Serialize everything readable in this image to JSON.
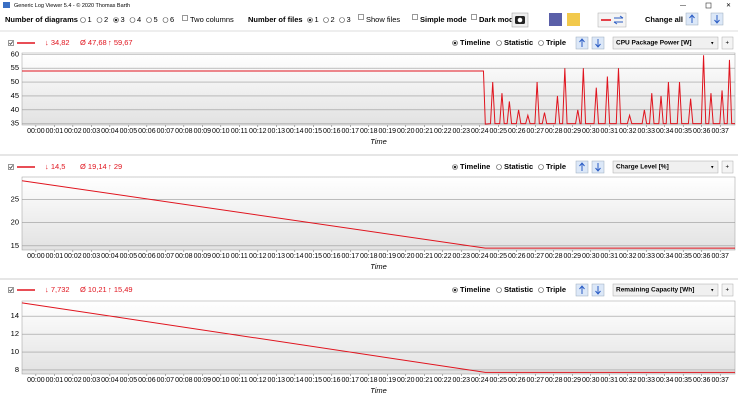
{
  "window": {
    "title": "Generic Log Viewer 5.4 - © 2020 Thomas Barth"
  },
  "toolbar": {
    "diagrams_label": "Number of diagrams",
    "diagram_options": [
      "1",
      "2",
      "3",
      "4",
      "5",
      "6"
    ],
    "diagram_selected": "3",
    "two_columns": "Two columns",
    "files_label": "Number of files",
    "file_options": [
      "1",
      "2",
      "3"
    ],
    "file_selected": "1",
    "show_files": "Show files",
    "simple_mode": "Simple mode",
    "dark_mode": "Dark mod",
    "change_all": "Change all"
  },
  "chart_data": [
    {
      "type": "line",
      "stats": [
        "↓ 34,82",
        "Ø 47,68",
        "↑ 59,67"
      ],
      "view_options": [
        "Timeline",
        "Statistic",
        "Triple"
      ],
      "view_selected": "Timeline",
      "channel": "CPU Package Power [W]",
      "x_label": "Time",
      "color": "#e0141e",
      "grid": true,
      "x": [
        -0.75,
        24.2,
        24.3,
        24.58,
        24.7,
        24.82,
        25.08,
        25.2,
        25.32,
        25.48,
        25.6,
        25.72,
        25.98,
        26.1,
        26.22,
        26.48,
        26.6,
        26.72,
        26.98,
        27.1,
        27.22,
        27.38,
        27.5,
        27.62,
        28.08,
        28.2,
        28.32,
        28.48,
        28.6,
        28.72,
        29.18,
        29.3,
        29.42,
        29.48,
        29.6,
        29.72,
        30.18,
        30.3,
        30.42,
        30.78,
        30.9,
        31.02,
        31.38,
        31.5,
        31.62,
        31.98,
        32.1,
        32.22,
        32.78,
        32.9,
        33.02,
        33.18,
        33.3,
        33.42,
        33.68,
        33.8,
        33.92,
        34.08,
        34.2,
        34.32,
        34.68,
        34.8,
        34.92,
        35.28,
        35.4,
        35.52,
        35.98,
        36.1,
        36.22,
        36.38,
        36.5,
        36.62,
        36.98,
        37.1,
        37.22,
        37.38,
        37.5,
        37.62,
        37.8
      ],
      "values": [
        54,
        54,
        34.82,
        35,
        50,
        35,
        35,
        46,
        35,
        35,
        43,
        35,
        35,
        40,
        35,
        35,
        38,
        35,
        35,
        50,
        35,
        35,
        39,
        35,
        35,
        45,
        35,
        35,
        55,
        35,
        35,
        40,
        35,
        35,
        55,
        35,
        35,
        48,
        35,
        35,
        52,
        35,
        35,
        55,
        35,
        35,
        38,
        35,
        35,
        40,
        35,
        35,
        46,
        35,
        35,
        45,
        35,
        35,
        50,
        35,
        35,
        50,
        35,
        35,
        44,
        35,
        35,
        59.67,
        35,
        35,
        46,
        35,
        35,
        47,
        35,
        35,
        58,
        35,
        35
      ],
      "xlim": [
        -0.75,
        37.8
      ],
      "ylim": [
        34.5,
        60.5
      ],
      "yticks": [
        35,
        40,
        45,
        50,
        55,
        60
      ],
      "xticks": [
        {
          "value": 0,
          "label": "00:00"
        },
        {
          "value": 1,
          "label": "00:01"
        },
        {
          "value": 2,
          "label": "00:02"
        },
        {
          "value": 3,
          "label": "00:03"
        },
        {
          "value": 4,
          "label": "00:04"
        },
        {
          "value": 5,
          "label": "00:05"
        },
        {
          "value": 6,
          "label": "00:06"
        },
        {
          "value": 7,
          "label": "00:07"
        },
        {
          "value": 8,
          "label": "00:08"
        },
        {
          "value": 9,
          "label": "00:09"
        },
        {
          "value": 10,
          "label": "00:10"
        },
        {
          "value": 11,
          "label": "00:11"
        },
        {
          "value": 12,
          "label": "00:12"
        },
        {
          "value": 13,
          "label": "00:13"
        },
        {
          "value": 14,
          "label": "00:14"
        },
        {
          "value": 15,
          "label": "00:15"
        },
        {
          "value": 16,
          "label": "00:16"
        },
        {
          "value": 17,
          "label": "00:17"
        },
        {
          "value": 18,
          "label": "00:18"
        },
        {
          "value": 19,
          "label": "00:19"
        },
        {
          "value": 20,
          "label": "00:20"
        },
        {
          "value": 21,
          "label": "00:21"
        },
        {
          "value": 22,
          "label": "00:22"
        },
        {
          "value": 23,
          "label": "00:23"
        },
        {
          "value": 24,
          "label": "00:24"
        },
        {
          "value": 25,
          "label": "00:25"
        },
        {
          "value": 26,
          "label": "00:26"
        },
        {
          "value": 27,
          "label": "00:27"
        },
        {
          "value": 28,
          "label": "00:28"
        },
        {
          "value": 29,
          "label": "00:29"
        },
        {
          "value": 30,
          "label": "00:30"
        },
        {
          "value": 31,
          "label": "00:31"
        },
        {
          "value": 32,
          "label": "00:32"
        },
        {
          "value": 33,
          "label": "00:33"
        },
        {
          "value": 34,
          "label": "00:34"
        },
        {
          "value": 35,
          "label": "00:35"
        },
        {
          "value": 36,
          "label": "00:36"
        },
        {
          "value": 37,
          "label": "00:37"
        }
      ]
    },
    {
      "type": "line",
      "stats": [
        "↓ 14,5",
        "Ø 19,14",
        "↑ 29"
      ],
      "view_options": [
        "Timeline",
        "Statistic",
        "Triple"
      ],
      "view_selected": "Timeline",
      "channel": "Charge Level [%]",
      "x_label": "Time",
      "color": "#e0141e",
      "grid": true,
      "x": [
        -0.75,
        24.3,
        37.8
      ],
      "values": [
        29,
        14.5,
        14.5
      ],
      "xlim": [
        -0.75,
        37.8
      ],
      "ylim": [
        14.1,
        29.8
      ],
      "yticks": [
        15,
        20,
        25
      ],
      "xticks": [
        {
          "value": 0,
          "label": "00:00"
        },
        {
          "value": 1,
          "label": "00:01"
        },
        {
          "value": 2,
          "label": "00:02"
        },
        {
          "value": 3,
          "label": "00:03"
        },
        {
          "value": 4,
          "label": "00:04"
        },
        {
          "value": 5,
          "label": "00:05"
        },
        {
          "value": 6,
          "label": "00:06"
        },
        {
          "value": 7,
          "label": "00:07"
        },
        {
          "value": 8,
          "label": "00:08"
        },
        {
          "value": 9,
          "label": "00:09"
        },
        {
          "value": 10,
          "label": "00:10"
        },
        {
          "value": 11,
          "label": "00:11"
        },
        {
          "value": 12,
          "label": "00:12"
        },
        {
          "value": 13,
          "label": "00:13"
        },
        {
          "value": 14,
          "label": "00:14"
        },
        {
          "value": 15,
          "label": "00:15"
        },
        {
          "value": 16,
          "label": "00:16"
        },
        {
          "value": 17,
          "label": "00:17"
        },
        {
          "value": 18,
          "label": "00:18"
        },
        {
          "value": 19,
          "label": "00:19"
        },
        {
          "value": 20,
          "label": "00:20"
        },
        {
          "value": 21,
          "label": "00:21"
        },
        {
          "value": 22,
          "label": "00:22"
        },
        {
          "value": 23,
          "label": "00:23"
        },
        {
          "value": 24,
          "label": "00:24"
        },
        {
          "value": 25,
          "label": "00:25"
        },
        {
          "value": 26,
          "label": "00:26"
        },
        {
          "value": 27,
          "label": "00:27"
        },
        {
          "value": 28,
          "label": "00:28"
        },
        {
          "value": 29,
          "label": "00:29"
        },
        {
          "value": 30,
          "label": "00:30"
        },
        {
          "value": 31,
          "label": "00:31"
        },
        {
          "value": 32,
          "label": "00:32"
        },
        {
          "value": 33,
          "label": "00:33"
        },
        {
          "value": 34,
          "label": "00:34"
        },
        {
          "value": 35,
          "label": "00:35"
        },
        {
          "value": 36,
          "label": "00:36"
        },
        {
          "value": 37,
          "label": "00:37"
        }
      ]
    },
    {
      "type": "line",
      "stats": [
        "↓ 7,732",
        "Ø 10,21",
        "↑ 15,49"
      ],
      "view_options": [
        "Timeline",
        "Statistic",
        "Triple"
      ],
      "view_selected": "Timeline",
      "channel": "Remaining Capacity [Wh]",
      "x_label": "Time",
      "color": "#e0141e",
      "grid": true,
      "x": [
        -0.75,
        24.3,
        37.8
      ],
      "values": [
        15.49,
        7.732,
        7.732
      ],
      "xlim": [
        -0.75,
        37.8
      ],
      "ylim": [
        7.55,
        15.7
      ],
      "yticks": [
        8,
        10,
        12,
        14
      ],
      "xticks": [
        {
          "value": 0,
          "label": "00:00"
        },
        {
          "value": 1,
          "label": "00:01"
        },
        {
          "value": 2,
          "label": "00:02"
        },
        {
          "value": 3,
          "label": "00:03"
        },
        {
          "value": 4,
          "label": "00:04"
        },
        {
          "value": 5,
          "label": "00:05"
        },
        {
          "value": 6,
          "label": "00:06"
        },
        {
          "value": 7,
          "label": "00:07"
        },
        {
          "value": 8,
          "label": "00:08"
        },
        {
          "value": 9,
          "label": "00:09"
        },
        {
          "value": 10,
          "label": "00:10"
        },
        {
          "value": 11,
          "label": "00:11"
        },
        {
          "value": 12,
          "label": "00:12"
        },
        {
          "value": 13,
          "label": "00:13"
        },
        {
          "value": 14,
          "label": "00:14"
        },
        {
          "value": 15,
          "label": "00:15"
        },
        {
          "value": 16,
          "label": "00:16"
        },
        {
          "value": 17,
          "label": "00:17"
        },
        {
          "value": 18,
          "label": "00:18"
        },
        {
          "value": 19,
          "label": "00:19"
        },
        {
          "value": 20,
          "label": "00:20"
        },
        {
          "value": 21,
          "label": "00:21"
        },
        {
          "value": 22,
          "label": "00:22"
        },
        {
          "value": 23,
          "label": "00:23"
        },
        {
          "value": 24,
          "label": "00:24"
        },
        {
          "value": 25,
          "label": "00:25"
        },
        {
          "value": 26,
          "label": "00:26"
        },
        {
          "value": 27,
          "label": "00:27"
        },
        {
          "value": 28,
          "label": "00:28"
        },
        {
          "value": 29,
          "label": "00:29"
        },
        {
          "value": 30,
          "label": "00:30"
        },
        {
          "value": 31,
          "label": "00:31"
        },
        {
          "value": 32,
          "label": "00:32"
        },
        {
          "value": 33,
          "label": "00:33"
        },
        {
          "value": 34,
          "label": "00:34"
        },
        {
          "value": 35,
          "label": "00:35"
        },
        {
          "value": 36,
          "label": "00:36"
        },
        {
          "value": 37,
          "label": "00:37"
        }
      ]
    }
  ]
}
